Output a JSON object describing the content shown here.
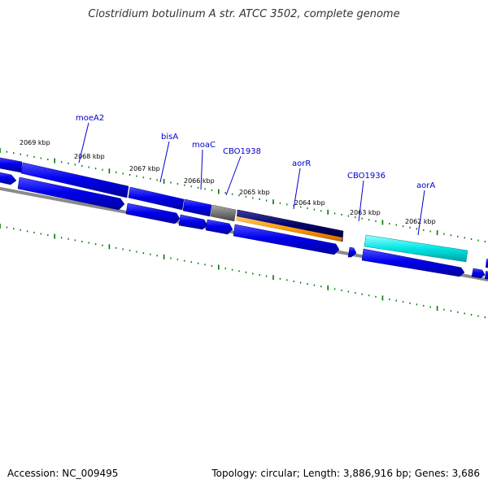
{
  "title": "Clostridium botulinum A str. ATCC 3502, complete genome",
  "footer": {
    "accession": "Accession: NC_009495",
    "stats": "Topology: circular; Length: 3,886,916 bp; Genes: 3,686"
  },
  "scale_labels": [
    "2069 kbp",
    "2068 kbp",
    "2067 kbp",
    "2066 kbp",
    "2065 kbp",
    "2064 kbp",
    "2063 kbp",
    "2062 kbp"
  ],
  "gene_labels": [
    "moeA2",
    "bisA",
    "moaC",
    "CBO1938",
    "aorR",
    "CBO1936",
    "aorA"
  ],
  "colors": {
    "gene_blue": "#0000ee",
    "gene_navy": "#000066",
    "gene_gray": "#777777",
    "gene_orange": "#ff9900",
    "gene_cyan": "#00e5e5",
    "tick_green": "#007700",
    "backbone": "#888888",
    "label_blue": "#0000cc"
  }
}
